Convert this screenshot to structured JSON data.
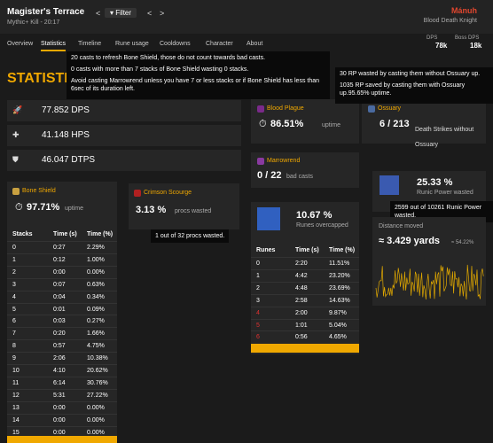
{
  "header": {
    "title": "Magister's Terrace",
    "subtitle": "Mythic+ Kill - 20:17",
    "filter": "Filter",
    "player": "Mánuh",
    "spec": "Blood Death Knight",
    "stats": [
      {
        "label": "DPS",
        "value": "78k"
      },
      {
        "label": "Boss DPS",
        "value": "18k"
      }
    ]
  },
  "tabs": [
    "Overview",
    "Statistics",
    "Timeline",
    "Rune usage",
    "Cooldowns",
    "Character",
    "About"
  ],
  "heading": "STATISTICS",
  "tooltip_main": [
    "20 casts to refresh Bone Shield, those do not count towards bad casts.",
    "0 casts with more than 7 stacks of Bone Shield wasting 0 stacks.",
    "Avoid casting Marrowrend unless you have 7 or less stacks or if Bone Shield has less than 6sec of its duration left."
  ],
  "tooltip_ossuary": [
    "30 RP wasted by casting them without Ossuary up.",
    "1035 RP saved by casting them with Ossuary up.95.65% uptime."
  ],
  "summary": [
    "77.852 DPS",
    "41.148 HPS",
    "46.047 DTPS"
  ],
  "blood_plague": {
    "title": "Blood Plague",
    "value": "86.51%",
    "unit": "uptime"
  },
  "marrowrend": {
    "title": "Marrowrend",
    "value": "0 / 22",
    "unit": "bad casts"
  },
  "ossuary": {
    "title": "Ossuary",
    "value": "6 / 213",
    "unit": "Death Strikes without Ossuary"
  },
  "bone_shield": {
    "title": "Bone Shield",
    "value": "97.71%",
    "unit": "uptime",
    "table": {
      "columns": [
        "Stacks",
        "Time (s)",
        "Time (%)"
      ],
      "rows": [
        [
          "0",
          "0:27",
          "2.29%"
        ],
        [
          "1",
          "0:12",
          "1.00%"
        ],
        [
          "2",
          "0:00",
          "0.00%"
        ],
        [
          "3",
          "0:07",
          "0.63%"
        ],
        [
          "4",
          "0:04",
          "0.34%"
        ],
        [
          "5",
          "0:01",
          "0.09%"
        ],
        [
          "6",
          "0:03",
          "0.27%"
        ],
        [
          "7",
          "0:20",
          "1.66%"
        ],
        [
          "8",
          "0:57",
          "4.75%"
        ],
        [
          "9",
          "2:06",
          "10.38%"
        ],
        [
          "10",
          "4:10",
          "20.62%"
        ],
        [
          "11",
          "6:14",
          "30.76%"
        ],
        [
          "12",
          "5:31",
          "27.22%"
        ],
        [
          "13",
          "0:00",
          "0.00%"
        ],
        [
          "14",
          "0:00",
          "0.00%"
        ],
        [
          "15",
          "0:00",
          "0.00%"
        ]
      ]
    }
  },
  "crimson_scourge": {
    "title": "Crimson Scourge",
    "value": "3.13 %",
    "unit": "procs wasted",
    "tooltip": "1 out of 32 procs wasted."
  },
  "runes": {
    "value": "10.67 %",
    "unit": "Runes overcapped",
    "table": {
      "columns": [
        "Runes",
        "Time (s)",
        "Time (%)"
      ],
      "rows": [
        [
          "0",
          "2:20",
          "11.51%"
        ],
        [
          "1",
          "4:42",
          "23.20%"
        ],
        [
          "2",
          "4:48",
          "23.69%"
        ],
        [
          "3",
          "2:58",
          "14.63%"
        ],
        [
          "4",
          "2:00",
          "9.87%"
        ],
        [
          "5",
          "1:01",
          "5.04%"
        ],
        [
          "6",
          "0:56",
          "4.65%"
        ]
      ]
    }
  },
  "runic_power": {
    "value": "25.33 %",
    "unit": "Runic Power wasted",
    "tooltip": "2599 out of 10261 Runic Power wasted."
  },
  "distance": {
    "title": "Distance moved",
    "value": "≈ 3.429 yards",
    "extra": "≈ 54.22%"
  }
}
